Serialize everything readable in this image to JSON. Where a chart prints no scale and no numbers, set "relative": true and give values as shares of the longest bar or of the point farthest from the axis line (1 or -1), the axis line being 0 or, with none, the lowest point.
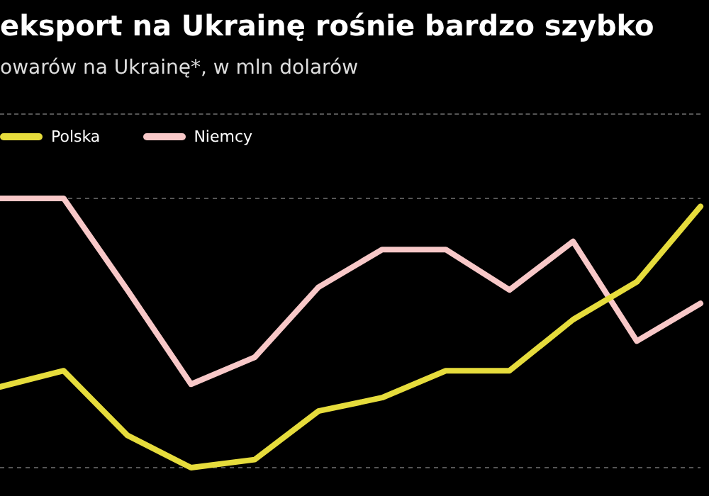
{
  "chart_data": {
    "type": "line",
    "title": "eksport na Ukrainę rośnie bardzo szybko",
    "subtitle": "owarów na Ukrainę*, w mln dolarów",
    "relative": true,
    "categories": [
      null,
      null,
      null,
      null,
      null,
      null,
      null,
      null,
      null,
      null,
      null,
      null
    ],
    "series": [
      {
        "name": "Polska",
        "color": "#e6dc3c",
        "values": [
          0.3,
          0.36,
          0.12,
          0,
          0.03,
          0.21,
          0.26,
          0.36,
          0.36,
          0.55,
          0.69,
          0.97
        ]
      },
      {
        "name": "Niemcy",
        "color": "#f8c8c8",
        "values": [
          1.0,
          1.0,
          0.66,
          0.31,
          0.41,
          0.67,
          0.81,
          0.81,
          0.66,
          0.84,
          0.47,
          0.61
        ]
      }
    ],
    "grid": "y",
    "legend": "top left",
    "marker": "none",
    "line_style": "solid"
  }
}
